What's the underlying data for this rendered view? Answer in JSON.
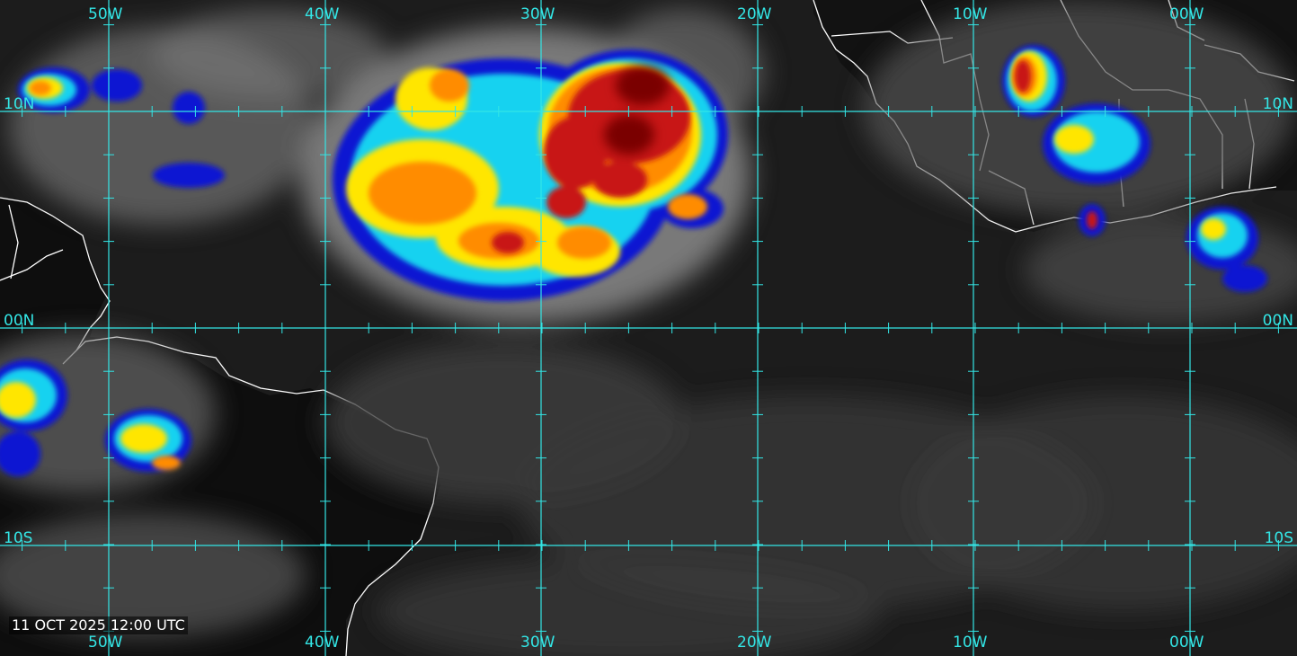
{
  "map": {
    "timestamp": "11 OCT 2025 12:00 UTC",
    "colors": {
      "grid": "#33e6e6",
      "label": "#33e6e6",
      "coastline": "#ffffff",
      "ocean": "#1a1a1a",
      "land": "#0d0d0d",
      "cloud_gray": "#8a8a8a",
      "cold_red": "#c81414",
      "cold_orange": "#ff8c00",
      "cold_yellow": "#ffe600",
      "cold_cyan": "#19d2f0",
      "cold_blue": "#0a14d2"
    },
    "longitude_labels_top": [
      "50W",
      "40W",
      "30W",
      "20W",
      "10W",
      "00W"
    ],
    "longitude_labels_bottom": [
      "50W",
      "40W",
      "30W",
      "20W",
      "10W",
      "00W"
    ],
    "latitude_labels_left": [
      "10N",
      "00N",
      "10S"
    ],
    "latitude_labels_right": [
      "10N",
      "00N",
      "10S"
    ]
  }
}
